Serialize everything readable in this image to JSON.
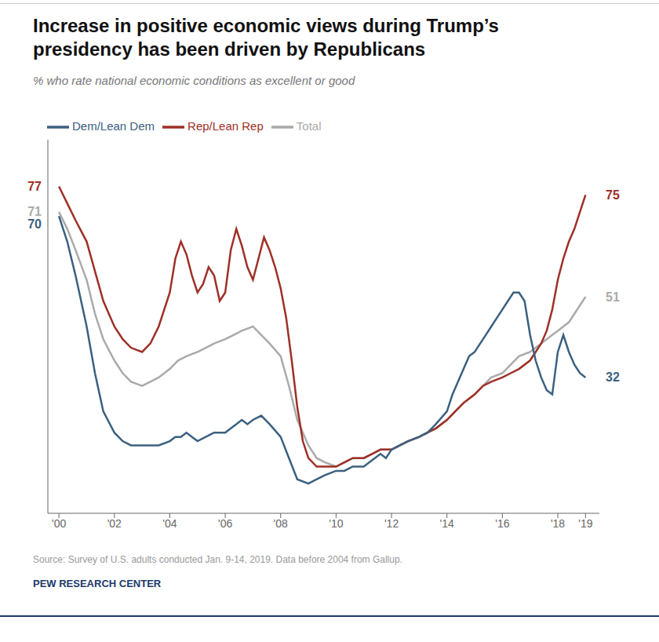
{
  "chart_data": {
    "type": "line",
    "title": "Increase in positive economic views during Trump’s\npresidency has been driven by Republicans",
    "subtitle": "% who rate national economic conditions as excellent or good",
    "source": "Source: Survey of U.S. adults conducted Jan. 9-14, 2019. Data before 2004 from Gallup.",
    "footer": "PEW RESEARCH CENTER",
    "legend": "upper left",
    "tick_labels": "x",
    "xlim": [
      1999.6,
      2019.5
    ],
    "xticks": [
      {
        "value": 2000,
        "label": "'00"
      },
      {
        "value": 2002,
        "label": "'02"
      },
      {
        "value": 2004,
        "label": "'04"
      },
      {
        "value": 2006,
        "label": "'06"
      },
      {
        "value": 2008,
        "label": "'08"
      },
      {
        "value": 2010,
        "label": "'10"
      },
      {
        "value": 2012,
        "label": "'12"
      },
      {
        "value": 2014,
        "label": "'14"
      },
      {
        "value": 2016,
        "label": "'16"
      },
      {
        "value": 2018,
        "label": "'18"
      },
      {
        "value": 2019,
        "label": "'19"
      }
    ],
    "ylim": [
      0,
      88
    ],
    "series": [
      {
        "name": "Total",
        "color": "#aaaaaa",
        "x": [
          2000.0,
          2000.3,
          2000.6,
          2001.0,
          2001.3,
          2001.6,
          2002.0,
          2002.3,
          2002.6,
          2003.0,
          2003.3,
          2003.6,
          2004.0,
          2004.3,
          2004.6,
          2005.0,
          2005.3,
          2005.6,
          2006.0,
          2006.3,
          2006.6,
          2007.0,
          2007.3,
          2007.6,
          2008.0,
          2008.3,
          2008.6,
          2009.0,
          2009.3,
          2009.6,
          2010.0,
          2010.3,
          2010.6,
          2011.0,
          2011.3,
          2011.6,
          2012.0,
          2012.3,
          2012.6,
          2013.0,
          2013.3,
          2013.6,
          2014.0,
          2014.3,
          2014.6,
          2015.0,
          2015.3,
          2015.6,
          2016.0,
          2016.3,
          2016.6,
          2017.0,
          2017.2,
          2017.4,
          2017.6,
          2017.8,
          2018.0,
          2018.2,
          2018.4,
          2018.6,
          2018.8,
          2019.0
        ],
        "values": [
          71,
          67,
          62,
          55,
          47,
          41,
          36,
          33,
          31,
          30,
          31,
          32,
          34,
          36,
          37,
          38,
          39,
          40,
          41,
          42,
          43,
          44,
          42,
          40,
          37,
          30,
          22,
          16,
          13,
          12,
          11,
          12,
          13,
          13,
          14,
          15,
          15,
          16,
          17,
          18,
          19,
          20,
          22,
          24,
          26,
          28,
          30,
          32,
          33,
          35,
          37,
          38,
          39,
          40,
          41,
          42,
          43,
          44,
          45,
          47,
          49,
          51
        ]
      },
      {
        "name": "Rep/Lean Rep",
        "color": "#9e3027",
        "x": [
          2000.0,
          2000.3,
          2000.6,
          2001.0,
          2001.3,
          2001.6,
          2002.0,
          2002.3,
          2002.6,
          2003.0,
          2003.3,
          2003.6,
          2004.0,
          2004.2,
          2004.4,
          2004.6,
          2004.8,
          2005.0,
          2005.2,
          2005.4,
          2005.6,
          2005.8,
          2006.0,
          2006.2,
          2006.4,
          2006.6,
          2006.8,
          2007.0,
          2007.2,
          2007.4,
          2007.6,
          2007.8,
          2008.0,
          2008.2,
          2008.4,
          2008.6,
          2008.8,
          2009.0,
          2009.3,
          2009.6,
          2010.0,
          2010.3,
          2010.6,
          2011.0,
          2011.3,
          2011.6,
          2012.0,
          2012.3,
          2012.6,
          2013.0,
          2013.3,
          2013.6,
          2014.0,
          2014.3,
          2014.6,
          2015.0,
          2015.3,
          2015.6,
          2016.0,
          2016.3,
          2016.6,
          2017.0,
          2017.2,
          2017.4,
          2017.6,
          2017.8,
          2018.0,
          2018.2,
          2018.4,
          2018.6,
          2018.8,
          2019.0
        ],
        "values": [
          77,
          73,
          69,
          64,
          57,
          50,
          44,
          41,
          39,
          38,
          40,
          44,
          52,
          60,
          64,
          61,
          56,
          52,
          54,
          58,
          56,
          50,
          52,
          62,
          67,
          63,
          58,
          55,
          60,
          65,
          62,
          58,
          53,
          46,
          36,
          25,
          17,
          13,
          11,
          11,
          11,
          12,
          13,
          13,
          14,
          15,
          15,
          16,
          17,
          18,
          19,
          20,
          22,
          24,
          26,
          28,
          30,
          31,
          32,
          33,
          34,
          36,
          38,
          40,
          43,
          48,
          55,
          60,
          64,
          67,
          71,
          75
        ]
      },
      {
        "name": "Dem/Lean Dem",
        "color": "#3b6080",
        "x": [
          2000.0,
          2000.3,
          2000.6,
          2001.0,
          2001.3,
          2001.6,
          2002.0,
          2002.3,
          2002.6,
          2003.0,
          2003.3,
          2003.6,
          2004.0,
          2004.2,
          2004.4,
          2004.6,
          2004.8,
          2005.0,
          2005.3,
          2005.6,
          2006.0,
          2006.2,
          2006.4,
          2006.6,
          2006.8,
          2007.0,
          2007.3,
          2007.6,
          2008.0,
          2008.3,
          2008.6,
          2009.0,
          2009.3,
          2009.6,
          2010.0,
          2010.3,
          2010.6,
          2011.0,
          2011.2,
          2011.4,
          2011.6,
          2011.8,
          2012.0,
          2012.3,
          2012.6,
          2013.0,
          2013.3,
          2013.6,
          2014.0,
          2014.2,
          2014.4,
          2014.6,
          2014.8,
          2015.0,
          2015.2,
          2015.4,
          2015.6,
          2015.8,
          2016.0,
          2016.2,
          2016.4,
          2016.6,
          2016.8,
          2017.0,
          2017.2,
          2017.4,
          2017.6,
          2017.8,
          2018.0,
          2018.2,
          2018.4,
          2018.6,
          2018.8,
          2019.0
        ],
        "values": [
          70,
          64,
          56,
          44,
          33,
          24,
          19,
          17,
          16,
          16,
          16,
          16,
          17,
          18,
          18,
          19,
          18,
          17,
          18,
          19,
          19,
          20,
          21,
          22,
          21,
          22,
          23,
          21,
          18,
          13,
          8,
          7,
          8,
          9,
          10,
          10,
          11,
          11,
          12,
          13,
          14,
          13,
          15,
          16,
          17,
          18,
          19,
          21,
          24,
          28,
          31,
          34,
          37,
          38,
          40,
          42,
          44,
          46,
          48,
          50,
          52,
          52,
          50,
          42,
          36,
          32,
          29,
          28,
          38,
          42,
          38,
          35,
          33,
          32
        ]
      }
    ],
    "annotations": [
      {
        "text": "77",
        "y": 77,
        "side": "start",
        "color": "#9e3027"
      },
      {
        "text": "71",
        "y": 71,
        "side": "start",
        "color": "#aaaaaa"
      },
      {
        "text": "70",
        "y": 70,
        "side": "start",
        "color": "#3b6080"
      },
      {
        "text": "75",
        "y": 75,
        "side": "end",
        "color": "#9e3027"
      },
      {
        "text": "51",
        "y": 51,
        "side": "end",
        "color": "#aaaaaa"
      },
      {
        "text": "32",
        "y": 32,
        "side": "end",
        "color": "#3b6080"
      }
    ]
  }
}
